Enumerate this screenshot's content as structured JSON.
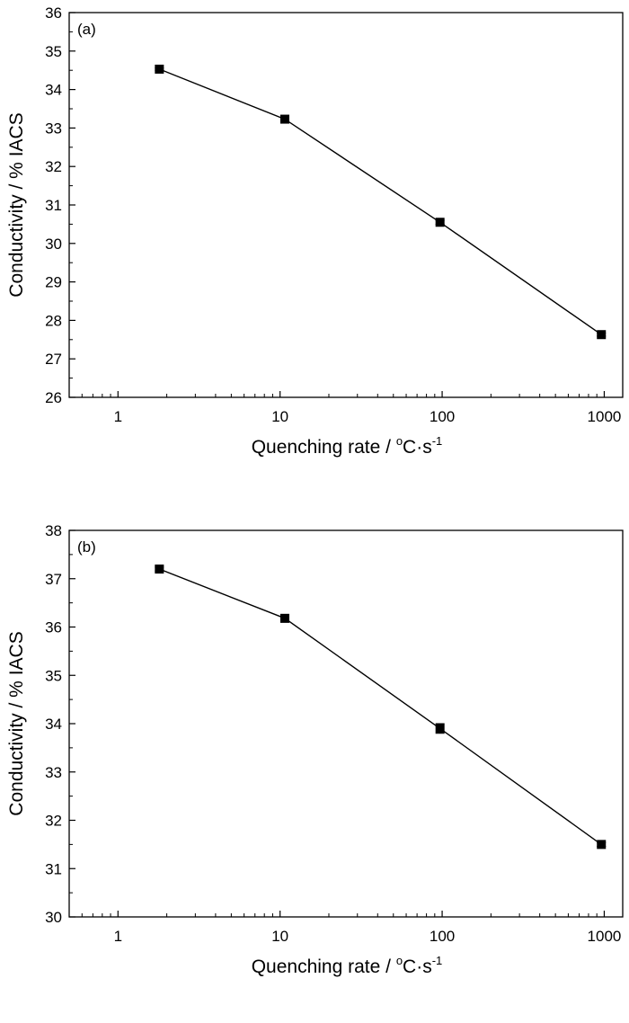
{
  "colors": {
    "line": "#000000",
    "marker": "#000000",
    "axes": "#000000",
    "background": "#ffffff"
  },
  "chart_data": [
    {
      "type": "line",
      "panel_label": "(a)",
      "xlabel_main": "Quenching rate / ",
      "xlabel_super_o": "o",
      "xlabel_unit": "C·s",
      "xlabel_super_exp": "-1",
      "ylabel": "Conductivity / % IACS",
      "xscale": "log",
      "xlim": [
        0.5,
        1300
      ],
      "ylim": [
        26,
        36
      ],
      "xticks": [
        1,
        10,
        100,
        1000
      ],
      "xtick_labels": [
        "1",
        "10",
        "100",
        "1000"
      ],
      "yticks": [
        26,
        27,
        28,
        29,
        30,
        31,
        32,
        33,
        34,
        35,
        36
      ],
      "ytick_labels": [
        "26",
        "27",
        "28",
        "29",
        "30",
        "31",
        "32",
        "33",
        "34",
        "35",
        "36"
      ],
      "legend": "none",
      "grid": false,
      "x": [
        1.8,
        10.7,
        97,
        960
      ],
      "y": [
        34.53,
        33.23,
        30.55,
        27.63
      ],
      "yerr": [
        0.03,
        0.04,
        0.05,
        0.04
      ]
    },
    {
      "type": "line",
      "panel_label": "(b)",
      "xlabel_main": "Quenching rate / ",
      "xlabel_super_o": "o",
      "xlabel_unit": "C·s",
      "xlabel_super_exp": "-1",
      "ylabel": "Conductivity / % IACS",
      "xscale": "log",
      "xlim": [
        0.5,
        1300
      ],
      "ylim": [
        30,
        38
      ],
      "xticks": [
        1,
        10,
        100,
        1000
      ],
      "xtick_labels": [
        "1",
        "10",
        "100",
        "1000"
      ],
      "yticks": [
        30,
        31,
        32,
        33,
        34,
        35,
        36,
        37,
        38
      ],
      "ytick_labels": [
        "30",
        "31",
        "32",
        "33",
        "34",
        "35",
        "36",
        "37",
        "38"
      ],
      "legend": "none",
      "grid": false,
      "x": [
        1.8,
        10.7,
        97,
        960
      ],
      "y": [
        37.2,
        36.18,
        33.9,
        31.5
      ],
      "yerr": [
        0.04,
        0.08,
        0.1,
        0.04
      ]
    }
  ]
}
